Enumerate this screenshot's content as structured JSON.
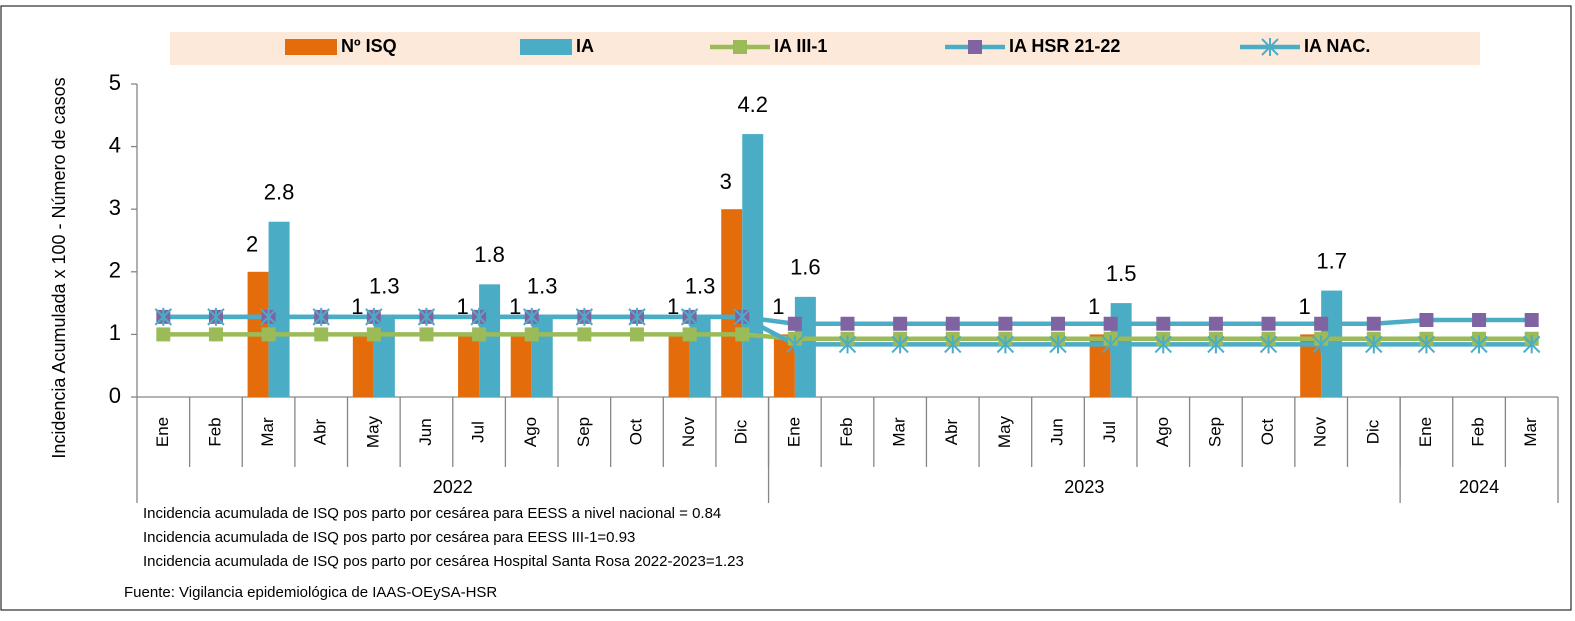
{
  "chart_data": {
    "type": "bar_line",
    "y_label": "Incidencia Acumulada x 100 - Número de casos",
    "categories": [
      "Ene",
      "Feb",
      "Mar",
      "Abr",
      "May",
      "Jun",
      "Jul",
      "Ago",
      "Sep",
      "Oct",
      "Nov",
      "Dic",
      "Ene",
      "Feb",
      "Mar",
      "Abr",
      "May",
      "Jun",
      "Jul",
      "Ago",
      "Sep",
      "Oct",
      "Nov",
      "Dic",
      "Ene",
      "Feb",
      "Mar"
    ],
    "category_groups": [
      {
        "label": "2022",
        "count": 12
      },
      {
        "label": "2023",
        "count": 12
      },
      {
        "label": "2024",
        "count": 3
      }
    ],
    "ylim": [
      0,
      5
    ],
    "yticks": [
      0,
      1,
      2,
      3,
      4,
      5
    ],
    "series": [
      {
        "name": "Nº ISQ",
        "kind": "bar",
        "color": "#e46c0a",
        "values": [
          null,
          null,
          2,
          null,
          1,
          null,
          1,
          1,
          null,
          null,
          1,
          3,
          1,
          null,
          null,
          null,
          null,
          null,
          1,
          null,
          null,
          null,
          1,
          null,
          null,
          null,
          null
        ]
      },
      {
        "name": "IA",
        "kind": "bar",
        "color": "#4bacc6",
        "values": [
          null,
          null,
          2.8,
          null,
          1.3,
          null,
          1.8,
          1.3,
          null,
          null,
          1.3,
          4.2,
          1.6,
          null,
          null,
          null,
          null,
          null,
          1.5,
          null,
          null,
          null,
          1.7,
          null,
          null,
          null,
          null
        ]
      },
      {
        "name": "IA III-1",
        "kind": "line",
        "color": "#9bbb59",
        "marker": "square",
        "marker_color": "#9bbb59",
        "values": [
          1,
          1,
          1,
          1,
          1,
          1,
          1,
          1,
          1,
          1,
          1,
          1,
          0.93,
          0.93,
          0.93,
          0.93,
          0.93,
          0.93,
          0.93,
          0.93,
          0.93,
          0.93,
          0.93,
          0.93,
          0.93,
          0.93,
          0.93
        ]
      },
      {
        "name": "IA HSR 21-22",
        "kind": "line",
        "color": "#4bacc6",
        "marker": "square",
        "marker_color": "#8064a2",
        "values": [
          1.28,
          1.28,
          1.28,
          1.28,
          1.28,
          1.28,
          1.28,
          1.28,
          1.28,
          1.28,
          1.28,
          1.28,
          1.17,
          1.17,
          1.17,
          1.17,
          1.17,
          1.17,
          1.17,
          1.17,
          1.17,
          1.17,
          1.17,
          1.17,
          1.23,
          1.23,
          1.23
        ]
      },
      {
        "name": "IA NAC.",
        "kind": "line",
        "color": "#4bacc6",
        "marker": "star",
        "marker_color": "#4bacc6",
        "values": [
          1.28,
          1.28,
          1.28,
          1.28,
          1.28,
          1.28,
          1.28,
          1.28,
          1.28,
          1.28,
          1.28,
          1.28,
          0.84,
          0.84,
          0.84,
          0.84,
          0.84,
          0.84,
          0.84,
          0.84,
          0.84,
          0.84,
          0.84,
          0.84,
          0.84,
          0.84,
          0.84
        ]
      }
    ],
    "notes": [
      "Incidencia acumulada de ISQ pos parto por cesárea para EESS a nivel nacional = 0.84",
      "Incidencia acumulada de ISQ pos parto por cesárea para EESS III-1=0.93",
      "Incidencia acumulada de ISQ pos parto por cesárea Hospital Santa Rosa 2022-2023=1.23"
    ],
    "source": "Fuente: Vigilancia epidemiológica de IAAS-OEySA-HSR"
  }
}
